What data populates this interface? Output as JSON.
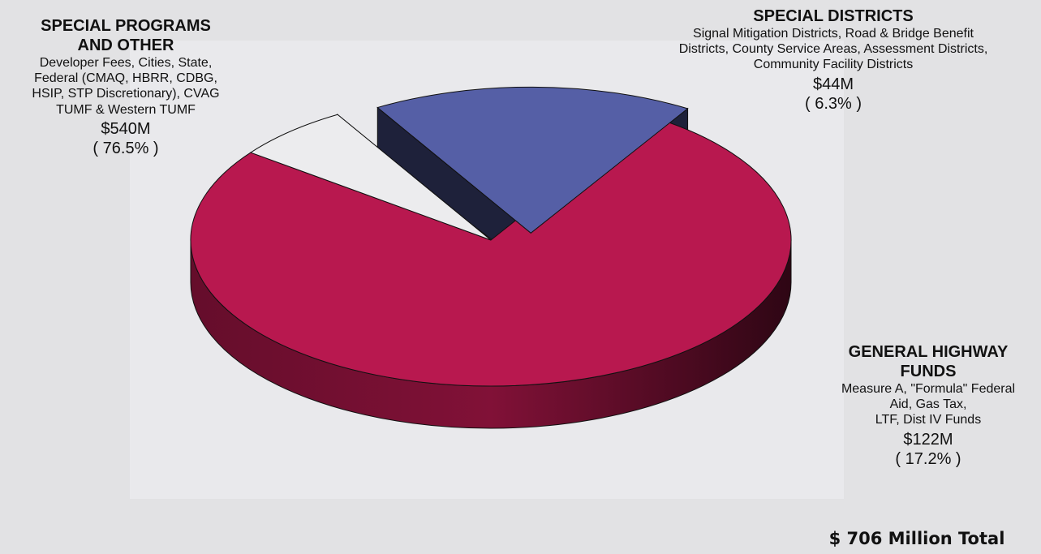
{
  "chart_data": {
    "type": "pie",
    "total_label": "$ 706 Million Total",
    "slices": [
      {
        "title": "SPECIAL PROGRAMS AND OTHER",
        "title_lines": [
          "SPECIAL PROGRAMS",
          "AND OTHER"
        ],
        "description_lines": [
          "Developer Fees, Cities, State,",
          "Federal (CMAQ, HBRR, CDBG,",
          "HSIP, STP Discretionary), CVAG",
          "TUMF & Western TUMF"
        ],
        "amount": "$540M",
        "percent_label": "( 76.5% )",
        "value": 540,
        "percent": 76.5,
        "color": "#b8184f",
        "exploded": false
      },
      {
        "title": "SPECIAL DISTRICTS",
        "title_lines": [
          "SPECIAL DISTRICTS"
        ],
        "description_lines": [
          "Signal Mitigation Districts, Road & Bridge Benefit",
          "Districts, County Service Areas, Assessment Districts,",
          "Community Facility Districts"
        ],
        "amount": "$44M",
        "percent_label": "( 6.3% )",
        "value": 44,
        "percent": 6.3,
        "color": "#ececee",
        "exploded": false
      },
      {
        "title": "GENERAL HIGHWAY FUNDS",
        "title_lines": [
          "GENERAL HIGHWAY",
          "FUNDS"
        ],
        "description_lines": [
          "Measure A, \"Formula\" Federal",
          "Aid, Gas Tax,",
          "LTF, Dist IV Funds"
        ],
        "amount": "$122M",
        "percent_label": "( 17.2% )",
        "value": 122,
        "percent": 17.2,
        "color": "#555fa6",
        "exploded": true
      }
    ]
  }
}
